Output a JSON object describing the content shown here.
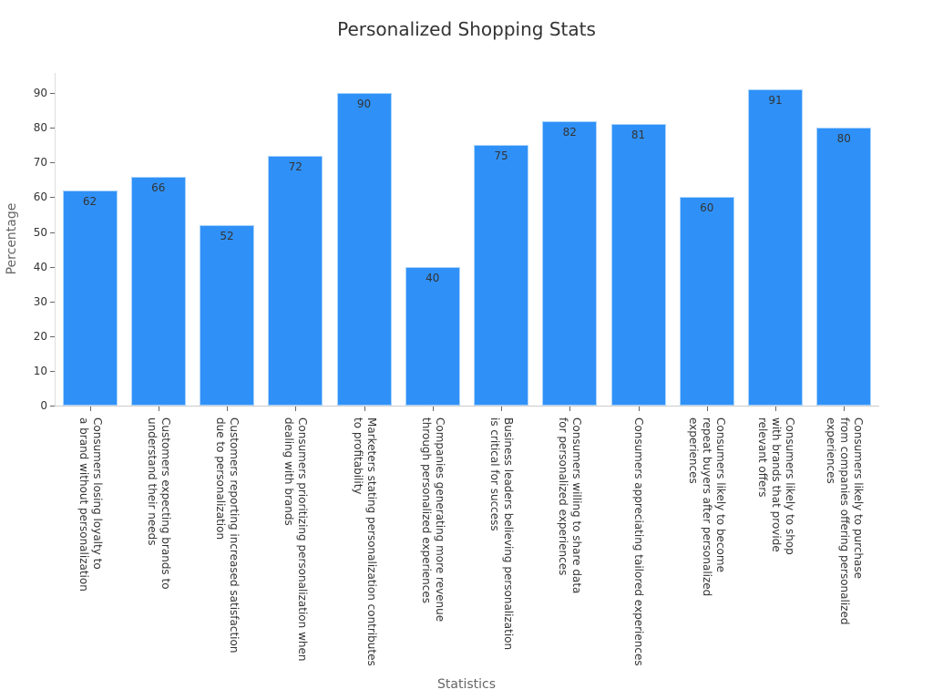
{
  "chart_data": {
    "type": "bar",
    "title": "Personalized Shopping Stats",
    "xlabel": "Statistics",
    "ylabel": "Percentage",
    "ylim": [
      0,
      95
    ],
    "yticks": [
      0,
      10,
      20,
      30,
      40,
      50,
      60,
      70,
      80,
      90
    ],
    "grid": false,
    "legend": null,
    "bar_color": "#2f91f8",
    "categories": [
      "Consumers losing loyalty to a brand without personalization",
      "Customers expecting brands to understand their needs",
      "Customers reporting increased satisfaction due to personalization",
      "Consumers prioritizing personalization when dealing with brands",
      "Marketers stating personalization contributes to profitability",
      "Companies generating more revenue through personalized experiences",
      "Business leaders believing personalization is critical for success",
      "Consumers willing to share data for personalized experiences",
      "Consumers appreciating tailored experiences",
      "Consumers likely to become repeat buyers after personalized experiences",
      "Consumers likely to shop with brands that provide relevant offers",
      "Consumers likely to purchase from companies offering personalized experiences"
    ],
    "category_lines": [
      "Consumers losing loyalty to\na brand without personalization",
      "Customers expecting brands to\nunderstand their needs",
      "Customers reporting increased satisfaction\ndue to personalization",
      "Consumers prioritizing personalization when\ndealing with brands",
      "Marketers stating personalization contributes\nto profitability",
      "Companies generating more revenue\nthrough personalized experiences",
      "Business leaders believing personalization\nis critical for success",
      "Consumers willing to share data\nfor personalized experiences",
      "Consumers appreciating tailored experiences",
      "Consumers likely to become\nrepeat buyers after personalized\nexperiences",
      "Consumers likely to shop\nwith brands that provide\nrelevant offers",
      "Consumers likely to purchase\nfrom companies offering personalized\nexperiences"
    ],
    "values": [
      62,
      66,
      52,
      72,
      90,
      40,
      75,
      82,
      81,
      60,
      91,
      80
    ]
  }
}
